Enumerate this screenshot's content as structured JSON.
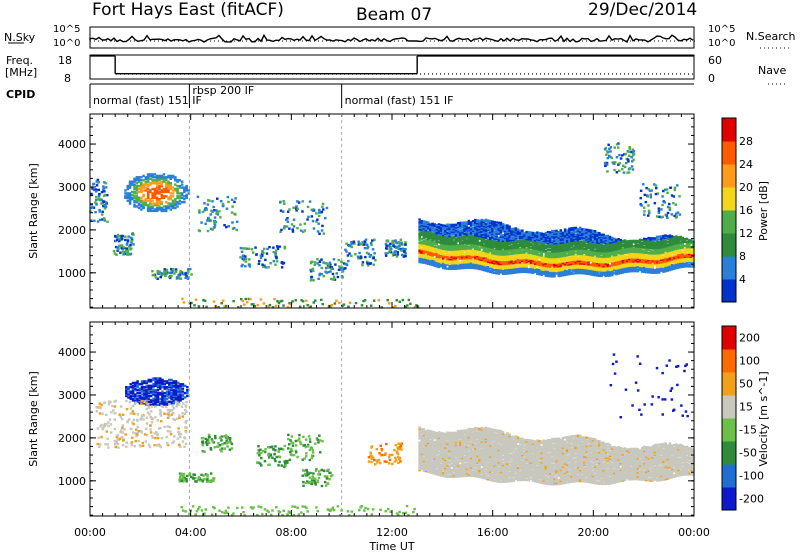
{
  "header": {
    "station": "Fort Hays East (fitACF)",
    "beam": "Beam 07",
    "date": "29/Dec/2014"
  },
  "nsky": {
    "label": "N.Sky",
    "ticks": [
      "10^5",
      "10^0"
    ],
    "right_label": "N.Search",
    "right_ticks": [
      "10^5",
      "10^0"
    ]
  },
  "freq": {
    "label_line1": "Freq.",
    "label_line2": "[MHz]",
    "ticks": [
      "18",
      "8"
    ],
    "right_label": "Nave",
    "right_ticks": [
      "60",
      "0"
    ],
    "series": [
      {
        "from": 0.0,
        "to": 1.0,
        "mhz": 17.6
      },
      {
        "from": 1.0,
        "to": 13.0,
        "mhz": 10.2
      },
      {
        "from": 13.0,
        "to": 24.0,
        "mhz": 17.6
      }
    ]
  },
  "cpid": {
    "label": "CPID",
    "segments": [
      {
        "time_h": 0.0,
        "text": "normal (fast) 151 IF"
      },
      {
        "time_h": 3.95,
        "text": "rbsp 200 IF"
      },
      {
        "time_h": 10.0,
        "text": "normal (fast) 151 IF"
      }
    ]
  },
  "chart_data": [
    {
      "type": "heatmap",
      "panel": "power",
      "ylabel": "Slant Range [km]",
      "y_ticks": [
        1000,
        2000,
        3000,
        4000
      ],
      "ylim": [
        180,
        4700
      ],
      "xlim": [
        0,
        24
      ],
      "colorbar": {
        "label": "Power [dB]",
        "ticks": [
          "4",
          "8",
          "12",
          "16",
          "20",
          "24",
          "28"
        ],
        "colors": [
          "#0033cc",
          "#2a7fd6",
          "#2e8b3c",
          "#4fae4a",
          "#f2d61a",
          "#ff9b1a",
          "#ff5a00",
          "#e00000"
        ]
      },
      "features": [
        {
          "desc": "band",
          "t0": 13.0,
          "t1": 24.0,
          "r_top": 2300,
          "r_bottom": 1000
        },
        {
          "desc": "patch",
          "t0": 1.0,
          "t1": 4.0,
          "r_top": 3400,
          "r_bottom": 1700
        }
      ]
    },
    {
      "type": "heatmap",
      "panel": "velocity",
      "ylabel": "Slant Range [km]",
      "y_ticks": [
        1000,
        2000,
        3000,
        4000
      ],
      "ylim": [
        180,
        4700
      ],
      "xlim": [
        0,
        24
      ],
      "colorbar": {
        "label": "Velocity [m s^-1]",
        "ticks": [
          "200",
          "100",
          "50",
          "15",
          "-15",
          "-50",
          "-100",
          "-200"
        ],
        "colors": [
          "#0a1acc",
          "#1f6fd0",
          "#2f8c3a",
          "#6cc04a",
          "#c8c8be",
          "#f2a019",
          "#ff6a00",
          "#e00000"
        ]
      }
    }
  ],
  "xaxis": {
    "label": "Time UT",
    "ticks": [
      "00:00",
      "04:00",
      "08:00",
      "12:00",
      "16:00",
      "20:00",
      "00:00"
    ]
  }
}
